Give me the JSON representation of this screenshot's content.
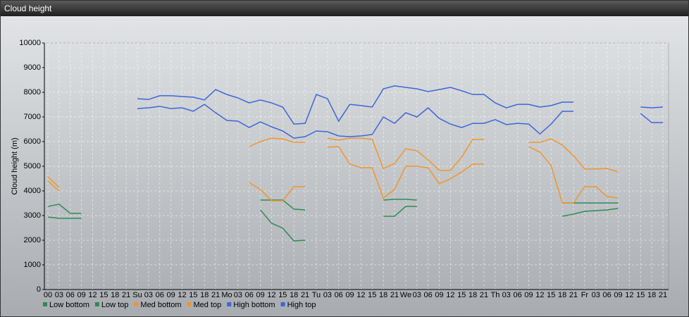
{
  "window_title": "Cloud height",
  "chart_data": {
    "type": "line",
    "ylabel": "Cloud height (m)",
    "categories": [
      "00",
      "03",
      "06",
      "09",
      "12",
      "15",
      "18",
      "21",
      "Su",
      "03",
      "06",
      "09",
      "12",
      "15",
      "18",
      "21",
      "Mo",
      "03",
      "06",
      "09",
      "12",
      "15",
      "18",
      "21",
      "Tu",
      "03",
      "06",
      "09",
      "12",
      "15",
      "18",
      "21",
      "We",
      "03",
      "06",
      "09",
      "12",
      "15",
      "18",
      "21",
      "Th",
      "03",
      "06",
      "09",
      "12",
      "15",
      "18",
      "21",
      "Fr",
      "03",
      "06",
      "09",
      "12",
      "15",
      "18",
      "21"
    ],
    "ylim": [
      0,
      10000
    ],
    "yticks": [
      0,
      1000,
      2000,
      3000,
      4000,
      5000,
      6000,
      7000,
      8000,
      9000,
      10000
    ],
    "grid": true,
    "series": [
      {
        "name": "Low bottom",
        "color": "#2e8b57",
        "values": [
          2940,
          2890,
          2890,
          2890,
          null,
          null,
          null,
          null,
          null,
          null,
          null,
          null,
          null,
          null,
          null,
          null,
          null,
          null,
          null,
          3230,
          2690,
          2490,
          1970,
          2000,
          null,
          null,
          null,
          null,
          null,
          null,
          2970,
          2970,
          3370,
          3370,
          null,
          null,
          null,
          null,
          null,
          null,
          null,
          null,
          null,
          null,
          null,
          null,
          2970,
          3060,
          3170,
          3200,
          3230,
          3290,
          null,
          null,
          null,
          null
        ]
      },
      {
        "name": "Low top",
        "color": "#2e8b57",
        "values": [
          3370,
          3460,
          3090,
          3090,
          null,
          null,
          null,
          null,
          null,
          null,
          null,
          null,
          null,
          null,
          null,
          null,
          null,
          null,
          null,
          3630,
          3630,
          3630,
          3260,
          3230,
          null,
          null,
          null,
          null,
          null,
          null,
          3630,
          3660,
          3660,
          3630,
          null,
          null,
          null,
          null,
          null,
          null,
          null,
          null,
          null,
          null,
          null,
          null,
          3510,
          3510,
          3510,
          3510,
          3510,
          3510,
          null,
          null,
          null,
          null
        ]
      },
      {
        "name": "Med bottom",
        "color": "#f0952e",
        "values": [
          4400,
          4000,
          null,
          null,
          null,
          null,
          null,
          null,
          null,
          null,
          null,
          null,
          null,
          null,
          null,
          null,
          null,
          null,
          4340,
          4060,
          3600,
          3600,
          4170,
          4170,
          null,
          5770,
          5800,
          5090,
          4940,
          4940,
          3710,
          4060,
          5000,
          5000,
          4940,
          4290,
          4490,
          4770,
          5090,
          5090,
          null,
          null,
          null,
          5800,
          5570,
          5030,
          3510,
          3510,
          4170,
          4170,
          3770,
          3710,
          null,
          null,
          null,
          null
        ]
      },
      {
        "name": "Med top",
        "color": "#f0952e",
        "values": [
          4570,
          4140,
          null,
          null,
          null,
          null,
          null,
          null,
          null,
          null,
          null,
          null,
          null,
          null,
          null,
          null,
          null,
          null,
          5800,
          6000,
          6140,
          6110,
          5970,
          5970,
          null,
          6140,
          6060,
          6140,
          6140,
          6090,
          4910,
          5110,
          5710,
          5630,
          5260,
          4830,
          4830,
          5370,
          6090,
          6090,
          null,
          null,
          null,
          5970,
          5970,
          6110,
          5860,
          5430,
          4890,
          4890,
          4910,
          4770,
          null,
          null,
          null,
          null
        ]
      },
      {
        "name": "High bottom",
        "color": "#3a68d8",
        "values": [
          null,
          null,
          null,
          null,
          null,
          null,
          null,
          null,
          7340,
          7370,
          7430,
          7340,
          7370,
          7230,
          7510,
          7170,
          6860,
          6830,
          6570,
          6800,
          6600,
          6430,
          6140,
          6200,
          6430,
          6400,
          6230,
          6200,
          6230,
          6290,
          7000,
          6740,
          7170,
          7000,
          7370,
          6940,
          6710,
          6570,
          6740,
          6740,
          6890,
          6690,
          6740,
          6710,
          6310,
          6710,
          7230,
          7230,
          null,
          null,
          null,
          null,
          null,
          7140,
          6770,
          6770
        ]
      },
      {
        "name": "High top",
        "color": "#3a68d8",
        "values": [
          null,
          null,
          null,
          null,
          null,
          null,
          null,
          null,
          7740,
          7710,
          7860,
          7860,
          7830,
          7800,
          7690,
          8110,
          7910,
          7770,
          7570,
          7690,
          7570,
          7400,
          6710,
          6740,
          7910,
          7740,
          6830,
          7510,
          7460,
          7400,
          8140,
          8260,
          8200,
          8140,
          8030,
          8110,
          8200,
          8060,
          7910,
          7910,
          7570,
          7370,
          7510,
          7510,
          7400,
          7460,
          7600,
          7600,
          null,
          null,
          null,
          null,
          null,
          7400,
          7370,
          7400
        ]
      }
    ]
  }
}
